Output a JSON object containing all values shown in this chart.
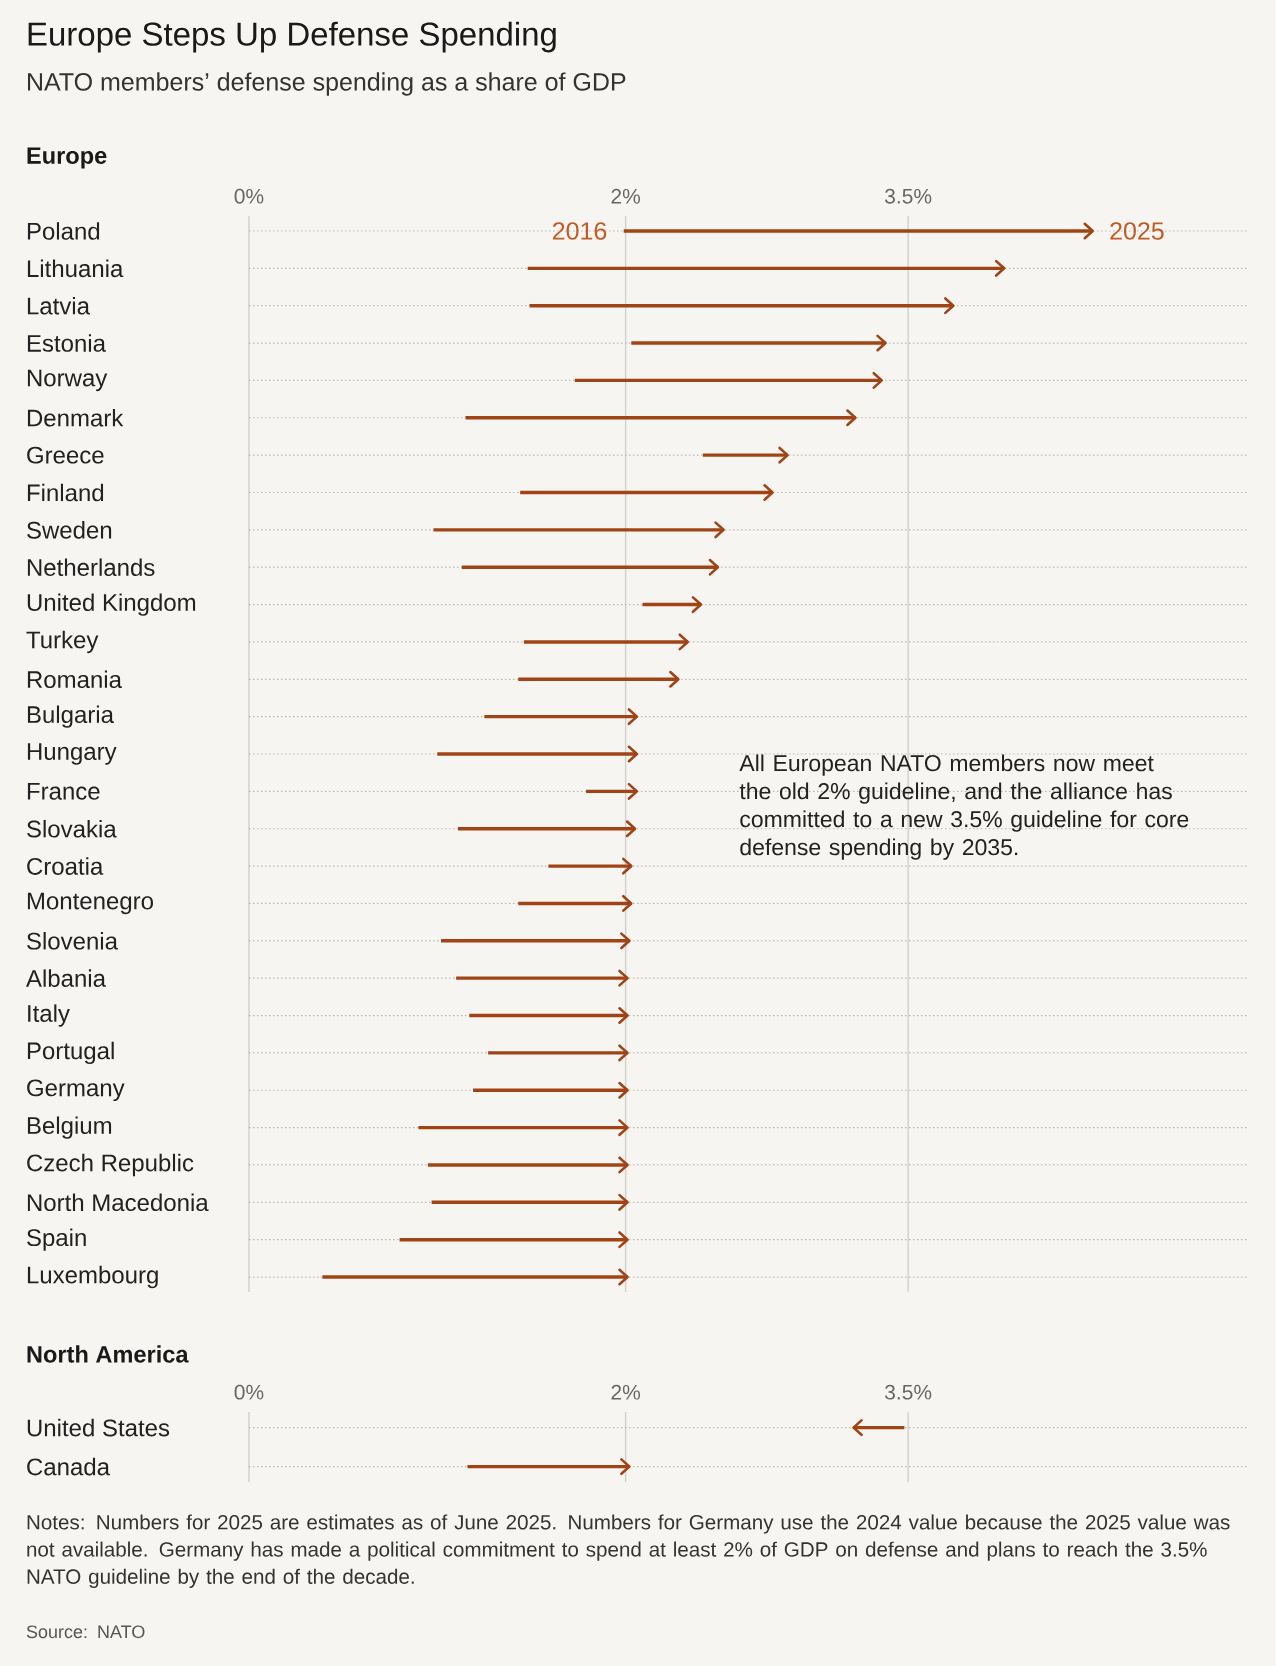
{
  "chart_data": [
    {
      "type": "bar",
      "orientation": "horizontal",
      "title": "Europe Steps Up Defense Spending",
      "subtitle": "NATO members’ defense spending as a share of GDP",
      "ylabel": "Europe",
      "categories": [
        "Poland",
        "Lithuania",
        "Latvia",
        "Estonia",
        "Norway",
        "Denmark",
        "Greece",
        "Finland",
        "Sweden",
        "Netherlands",
        "United Kingdom",
        "Turkey",
        "Romania",
        "Bulgaria",
        "Hungary",
        "France",
        "Slovakia",
        "Croatia",
        "Montenegro",
        "Slovenia",
        "Albania",
        "Italy",
        "Portugal",
        "Germany",
        "Belgium",
        "Czech Republic",
        "North Macedonia",
        "Spain",
        "Luxembourg"
      ],
      "base": [
        1.99,
        1.48,
        1.49,
        2.03,
        1.73,
        1.15,
        2.41,
        1.44,
        0.98,
        1.13,
        2.09,
        1.46,
        1.43,
        1.25,
        1.0,
        1.79,
        1.11,
        1.59,
        1.43,
        1.02,
        1.1,
        1.17,
        1.27,
        1.19,
        0.9,
        0.95,
        0.97,
        0.8,
        0.39
      ],
      "values": [
        2.49,
        2.53,
        2.25,
        1.35,
        1.63,
        2.07,
        0.45,
        1.34,
        1.54,
        1.36,
        0.31,
        0.87,
        0.85,
        0.81,
        1.06,
        0.27,
        0.94,
        0.44,
        0.6,
        1.0,
        0.91,
        0.84,
        0.74,
        0.82,
        1.11,
        1.06,
        1.04,
        1.21,
        1.62
      ],
      "color": "#a04416",
      "xlim": [
        0,
        5.3
      ],
      "xticks": [
        {
          "value": 0,
          "label": "0%"
        },
        {
          "value": 2,
          "label": "2%"
        },
        {
          "value": 3.5,
          "label": "3.5%"
        }
      ],
      "grid": true,
      "annotations": [
        {
          "text": "2016",
          "x": 1.99,
          "y": "Poland"
        },
        {
          "text": "2025",
          "x": 4.48,
          "y": "Poland"
        },
        "All European NATO members now meet the old 2% guideline, and the alliance has committed to a new 3.5% guideline for core defense spending by 2035."
      ]
    },
    {
      "type": "bar",
      "orientation": "horizontal",
      "ylabel": "North America",
      "categories": [
        "United States",
        "Canada"
      ],
      "base": [
        3.48,
        1.16
      ],
      "values": [
        -0.27,
        0.86
      ],
      "color": "#a04416",
      "xlim": [
        0,
        5.3
      ],
      "xticks": [
        {
          "value": 0,
          "label": "0%"
        },
        {
          "value": 2,
          "label": "2%"
        },
        {
          "value": 3.5,
          "label": "3.5%"
        }
      ],
      "grid": true,
      "annotations": [
        "Notes: Numbers for 2025 are estimates as of June 2025. Numbers for Germany use the 2024 value because the 2025 value was not available. Germany has made a political commitment to spend at least 2% of GDP on defense and plans to reach the 3.5% NATO guideline by the end of the decade.",
        "Source: NATO"
      ]
    }
  ]
}
